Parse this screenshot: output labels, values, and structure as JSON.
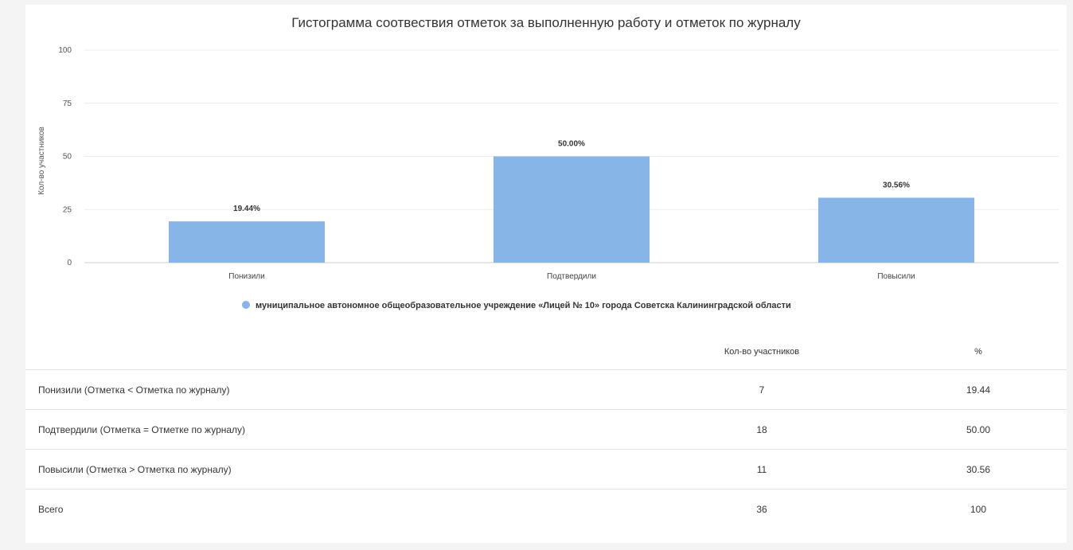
{
  "chart_data": {
    "type": "bar",
    "title": "Гистограмма соотвествия отметок за выполненную работу и отметок по журналу",
    "ylabel": "Кол-во участников",
    "xlabel": "",
    "ylim": [
      0,
      100
    ],
    "yticks": [
      0,
      25,
      50,
      75,
      100
    ],
    "grid": true,
    "legend_position": "bottom",
    "categories": [
      "Понизили",
      "Подтвердили",
      "Повысили"
    ],
    "series": [
      {
        "name": "муниципальное автономное общеобразовательное учреждение «Лицей № 10» города Советска Калининградской области",
        "values": [
          19.44,
          50.0,
          30.56
        ],
        "labels": [
          "19.44%",
          "50.00%",
          "30.56%"
        ]
      }
    ],
    "colors": {
      "bar": "#88b5e8",
      "grid": "#ececec",
      "axis": "#cfcfcf"
    }
  },
  "table": {
    "headers": {
      "label": "",
      "count": "Кол-во участников",
      "pct": "%"
    },
    "rows": [
      {
        "label": "Понизили (Отметка < Отметка по журналу)",
        "count": "7",
        "pct": "19.44"
      },
      {
        "label": "Подтвердили (Отметка = Отметке по журналу)",
        "count": "18",
        "pct": "50.00"
      },
      {
        "label": "Повысили (Отметка > Отметка по журналу)",
        "count": "11",
        "pct": "30.56"
      },
      {
        "label": "Всего",
        "count": "36",
        "pct": "100"
      }
    ]
  }
}
